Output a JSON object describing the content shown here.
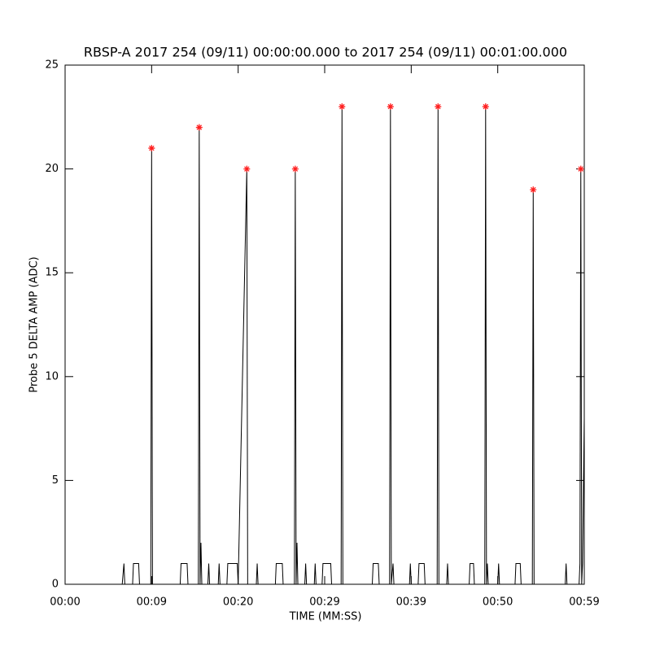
{
  "chart_data": {
    "type": "line",
    "title": "RBSP-A 2017 254 (09/11) 00:00:00.000 to 2017 254 (09/11) 00:01:00.000",
    "xlabel": "TIME (MM:SS)",
    "ylabel": "Probe 5 DELTA AMP (ADC)",
    "xlim": [
      0,
      60
    ],
    "xticks": [
      {
        "value": 0,
        "label": "00:00"
      },
      {
        "value": 10,
        "label": "00:09"
      },
      {
        "value": 20,
        "label": "00:20"
      },
      {
        "value": 30,
        "label": "00:29"
      },
      {
        "value": 40,
        "label": "00:39"
      },
      {
        "value": 50,
        "label": "00:50"
      },
      {
        "value": 60,
        "label": "00:59"
      }
    ],
    "ylim": [
      0,
      25
    ],
    "yticks": [
      0,
      5,
      10,
      15,
      20,
      25
    ],
    "series": [
      {
        "color": "#000000",
        "x": [
          0,
          6.6,
          6.8,
          6.9,
          7.8,
          7.9,
          8.5,
          8.6,
          9.9,
          10.0,
          10.1,
          13.3,
          13.4,
          14.1,
          14.2,
          15.4,
          15.5,
          15.6,
          15.7,
          15.8,
          16.5,
          16.6,
          16.7,
          17.7,
          17.8,
          17.9,
          18.7,
          18.8,
          19.9,
          20.0,
          21.0,
          21.1,
          22.1,
          22.2,
          22.3,
          24.3,
          24.4,
          25.1,
          25.2,
          26.5,
          26.6,
          26.7,
          26.8,
          26.9,
          27.7,
          27.8,
          27.9,
          28.8,
          28.9,
          29.0,
          29.7,
          29.8,
          30.7,
          30.8,
          31.9,
          32.0,
          32.1,
          35.5,
          35.6,
          36.2,
          36.3,
          37.5,
          37.6,
          37.7,
          37.9,
          38.0,
          39.8,
          39.9,
          40.0,
          40.8,
          40.9,
          41.5,
          41.6,
          43.0,
          43.1,
          43.2,
          44.1,
          44.2,
          44.3,
          46.7,
          46.8,
          47.2,
          47.3,
          48.5,
          48.6,
          48.7,
          48.8,
          48.9,
          50.0,
          50.1,
          50.2,
          52.0,
          52.1,
          52.6,
          52.7,
          54.0,
          54.1,
          54.2,
          57.8,
          57.9,
          58.0,
          59.4,
          59.5,
          59.6,
          59.7,
          59.8,
          60
        ],
        "values": [
          0,
          0,
          1,
          0,
          0,
          1,
          1,
          0,
          0,
          21,
          0,
          0,
          1,
          1,
          0,
          0,
          22,
          0,
          2,
          0,
          0,
          1,
          0,
          0,
          1,
          0,
          0,
          1,
          1,
          0,
          20,
          0,
          0,
          1,
          0,
          0,
          1,
          1,
          0,
          0,
          20,
          0,
          2,
          0,
          0,
          1,
          0,
          0,
          1,
          0,
          0,
          1,
          1,
          0,
          0,
          23,
          0,
          0,
          1,
          1,
          0,
          0,
          23,
          0,
          1,
          0,
          0,
          1,
          0,
          0,
          1,
          1,
          0,
          0,
          23,
          0,
          0,
          1,
          0,
          0,
          1,
          1,
          0,
          0,
          23,
          0,
          1,
          0,
          0,
          1,
          0,
          0,
          1,
          1,
          0,
          0,
          19,
          0,
          0,
          1,
          0,
          0,
          1,
          20,
          0,
          1,
          8
        ]
      },
      {
        "color": "#ff2020",
        "marker": "*",
        "x": [
          10.0,
          15.5,
          21.0,
          26.6,
          32.0,
          37.6,
          43.1,
          48.6,
          54.1,
          59.6
        ],
        "values": [
          21,
          22,
          20,
          20,
          23,
          23,
          23,
          23,
          19,
          20
        ]
      }
    ]
  }
}
